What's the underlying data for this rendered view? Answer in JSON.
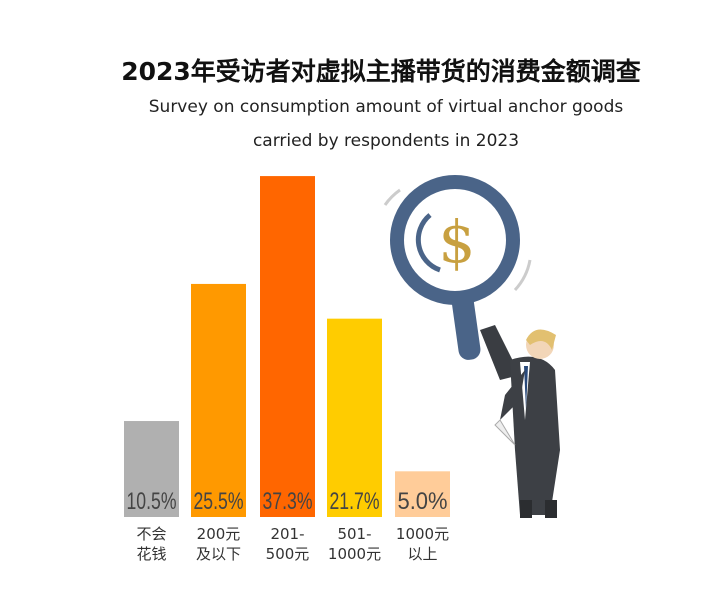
{
  "title": "2023年受访者对虚拟主播带货的消费金额调查",
  "subtitle_line1": "Survey on consumption amount of virtual anchor goods",
  "subtitle_line2": "carried by respondents in 2023",
  "chart_data": {
    "type": "bar",
    "title": "2023年受访者对虚拟主播带货的消费金额调查",
    "categories": [
      [
        "不会",
        "花钱"
      ],
      [
        "200元",
        "及以下"
      ],
      [
        "201-",
        "500元"
      ],
      [
        "501-",
        "1000元"
      ],
      [
        "1000元",
        "以上"
      ]
    ],
    "values": [
      10.5,
      25.5,
      37.3,
      21.7,
      5.0
    ],
    "labels": [
      "10.5%",
      "25.5%",
      "37.3%",
      "21.7%",
      "5.0%"
    ],
    "colors": [
      "#b0b0b0",
      "#ff9900",
      "#ff6600",
      "#ffcc00",
      "#ffcc99"
    ],
    "ylim": [
      0,
      40
    ],
    "xlabel": "",
    "ylabel": "",
    "grid": false
  }
}
